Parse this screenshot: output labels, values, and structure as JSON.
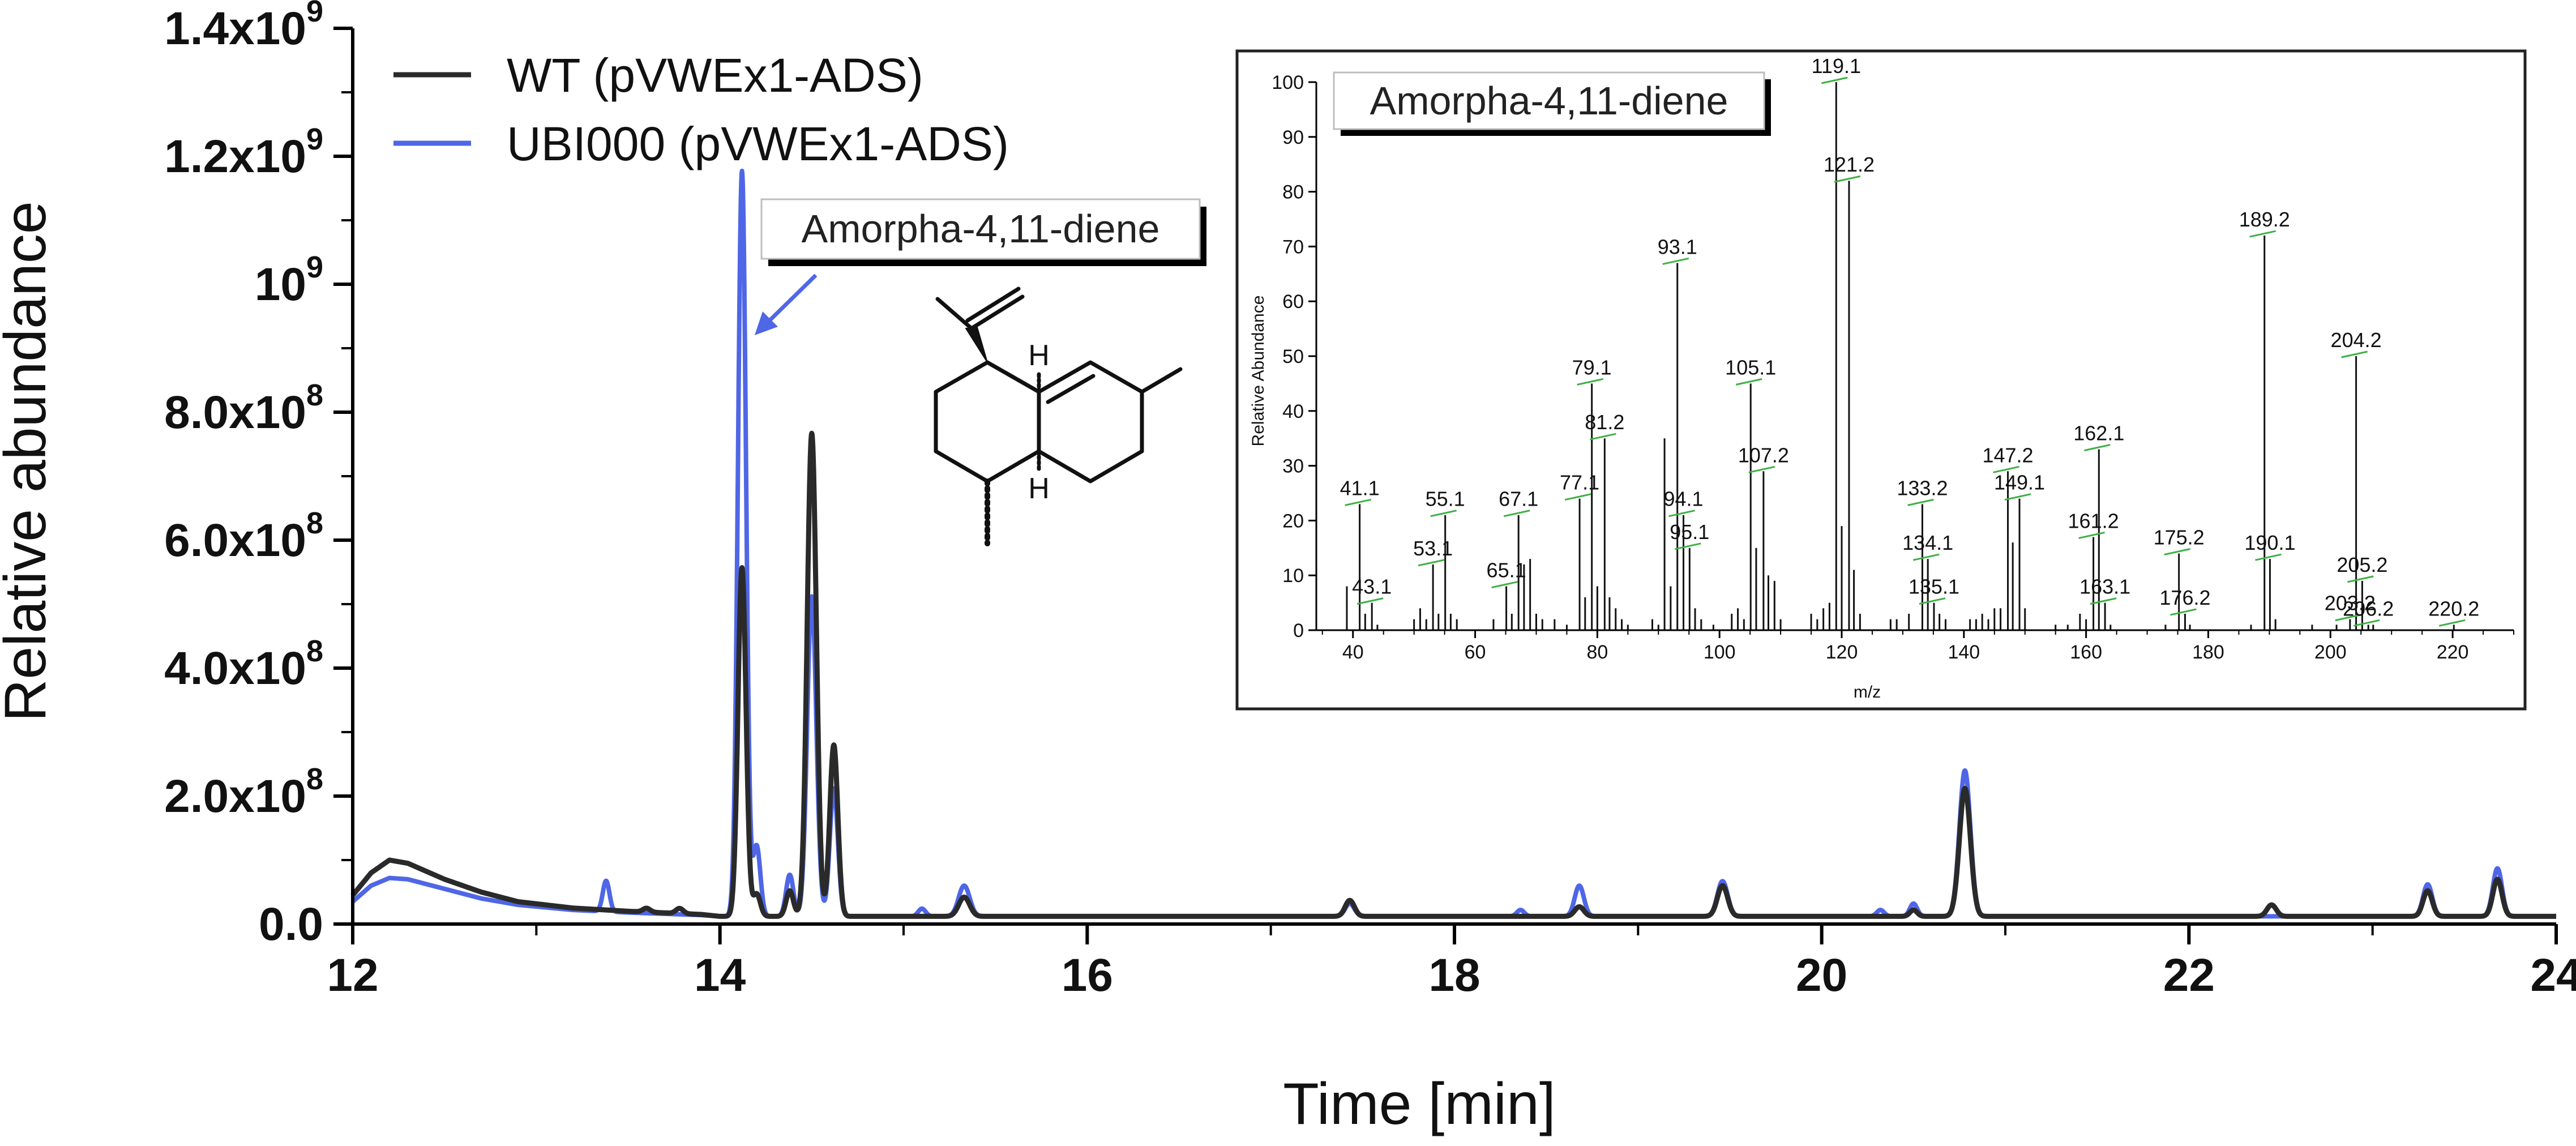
{
  "chart_data": [
    {
      "type": "line",
      "title": "",
      "xlabel": "Time [min]",
      "ylabel": "Relative abundance",
      "xlim": [
        12,
        24
      ],
      "ylim": [
        0,
        1.4
      ],
      "x_ticks": [
        12,
        14,
        16,
        18,
        20,
        22,
        24
      ],
      "y_ticks": [
        0,
        0.2,
        0.4,
        0.6,
        0.8,
        1.0,
        1.2,
        1.4
      ],
      "y_tick_labels": [
        {
          "mant": "0.0",
          "exp": ""
        },
        {
          "mant": "2.0x10",
          "exp": "8"
        },
        {
          "mant": "4.0x10",
          "exp": "8"
        },
        {
          "mant": "6.0x10",
          "exp": "8"
        },
        {
          "mant": "8.0x10",
          "exp": "8"
        },
        {
          "mant": "10",
          "exp": "9"
        },
        {
          "mant": "1.2x10",
          "exp": "9"
        },
        {
          "mant": "1.4x10",
          "exp": "9"
        }
      ],
      "grid": false,
      "legend_position": "top-left",
      "baseline": {
        "WT (pVWEx1-ADS)": 0.012,
        "UBI000 (pVWEx1-ADS)": 0.012
      },
      "series": [
        {
          "name": "WT (pVWEx1-ADS)",
          "color": "#2a2a2a",
          "start": [
            [
              12.0,
              0.045
            ],
            [
              12.1,
              0.08
            ],
            [
              12.2,
              0.1
            ],
            [
              12.3,
              0.095
            ],
            [
              12.5,
              0.07
            ],
            [
              12.7,
              0.05
            ],
            [
              12.9,
              0.035
            ],
            [
              13.2,
              0.025
            ],
            [
              13.5,
              0.02
            ],
            [
              13.9,
              0.015
            ],
            [
              14.0,
              0.012
            ]
          ],
          "peaks": [
            {
              "rt": 13.6,
              "height": 0.006,
              "width": 0.02
            },
            {
              "rt": 13.78,
              "height": 0.008,
              "width": 0.02
            },
            {
              "rt": 14.12,
              "height": 0.545,
              "width": 0.022
            },
            {
              "rt": 14.2,
              "height": 0.035,
              "width": 0.02
            },
            {
              "rt": 14.38,
              "height": 0.04,
              "width": 0.02
            },
            {
              "rt": 14.5,
              "height": 0.755,
              "width": 0.025
            },
            {
              "rt": 14.62,
              "height": 0.268,
              "width": 0.022
            },
            {
              "rt": 15.33,
              "height": 0.03,
              "width": 0.03
            },
            {
              "rt": 17.43,
              "height": 0.025,
              "width": 0.025
            },
            {
              "rt": 18.68,
              "height": 0.015,
              "width": 0.025
            },
            {
              "rt": 19.46,
              "height": 0.048,
              "width": 0.028
            },
            {
              "rt": 20.5,
              "height": 0.01,
              "width": 0.02
            },
            {
              "rt": 20.78,
              "height": 0.2,
              "width": 0.03
            },
            {
              "rt": 22.45,
              "height": 0.018,
              "width": 0.025
            },
            {
              "rt": 23.3,
              "height": 0.04,
              "width": 0.025
            },
            {
              "rt": 23.68,
              "height": 0.058,
              "width": 0.025
            }
          ]
        },
        {
          "name": "UBI000 (pVWEx1-ADS)",
          "color": "#4f66e6",
          "start": [
            [
              12.0,
              0.035
            ],
            [
              12.1,
              0.06
            ],
            [
              12.2,
              0.072
            ],
            [
              12.3,
              0.07
            ],
            [
              12.5,
              0.055
            ],
            [
              12.7,
              0.04
            ],
            [
              12.9,
              0.03
            ],
            [
              13.2,
              0.022
            ],
            [
              13.5,
              0.018
            ],
            [
              13.9,
              0.014
            ],
            [
              14.0,
              0.012
            ]
          ],
          "peaks": [
            {
              "rt": 13.38,
              "height": 0.048,
              "width": 0.018
            },
            {
              "rt": 14.12,
              "height": 1.165,
              "width": 0.022
            },
            {
              "rt": 14.2,
              "height": 0.11,
              "width": 0.02
            },
            {
              "rt": 14.38,
              "height": 0.065,
              "width": 0.02
            },
            {
              "rt": 14.5,
              "height": 0.5,
              "width": 0.025
            },
            {
              "rt": 14.62,
              "height": 0.2,
              "width": 0.022
            },
            {
              "rt": 15.1,
              "height": 0.012,
              "width": 0.02
            },
            {
              "rt": 15.33,
              "height": 0.048,
              "width": 0.03
            },
            {
              "rt": 17.43,
              "height": 0.02,
              "width": 0.025
            },
            {
              "rt": 18.36,
              "height": 0.01,
              "width": 0.02
            },
            {
              "rt": 18.68,
              "height": 0.048,
              "width": 0.025
            },
            {
              "rt": 19.46,
              "height": 0.055,
              "width": 0.028
            },
            {
              "rt": 20.32,
              "height": 0.01,
              "width": 0.02
            },
            {
              "rt": 20.5,
              "height": 0.02,
              "width": 0.02
            },
            {
              "rt": 20.78,
              "height": 0.228,
              "width": 0.03
            },
            {
              "rt": 23.3,
              "height": 0.05,
              "width": 0.025
            },
            {
              "rt": 23.68,
              "height": 0.075,
              "width": 0.025
            }
          ]
        }
      ],
      "annotation": {
        "label": "Amorpha-4,11-diene",
        "x": 14.12,
        "y": 0.93
      },
      "structure_labels": [
        "H",
        "H"
      ]
    },
    {
      "type": "bar",
      "title": "Amorpha-4,11-diene",
      "xlabel": "m/z",
      "ylabel": "Relative Abundance",
      "xlim": [
        34,
        230
      ],
      "ylim": [
        0,
        100
      ],
      "x_ticks": [
        40,
        60,
        80,
        100,
        120,
        140,
        160,
        180,
        200,
        220
      ],
      "y_ticks": [
        0,
        10,
        20,
        30,
        40,
        50,
        60,
        70,
        80,
        90,
        100
      ],
      "labeled_peaks": [
        {
          "mz": 41.1,
          "label": "41.1",
          "value": 23
        },
        {
          "mz": 43.1,
          "label": "43.1",
          "value": 5
        },
        {
          "mz": 53.1,
          "label": "53.1",
          "value": 12
        },
        {
          "mz": 55.1,
          "label": "55.1",
          "value": 21
        },
        {
          "mz": 65.1,
          "label": "65.1",
          "value": 8
        },
        {
          "mz": 67.1,
          "label": "67.1",
          "value": 21
        },
        {
          "mz": 77.1,
          "label": "77.1",
          "value": 24
        },
        {
          "mz": 79.1,
          "label": "79.1",
          "value": 45
        },
        {
          "mz": 81.2,
          "label": "81.2",
          "value": 35
        },
        {
          "mz": 93.1,
          "label": "93.1",
          "value": 67
        },
        {
          "mz": 94.1,
          "label": "94.1",
          "value": 21
        },
        {
          "mz": 95.1,
          "label": "95.1",
          "value": 15
        },
        {
          "mz": 105.1,
          "label": "105.1",
          "value": 45
        },
        {
          "mz": 107.2,
          "label": "107.2",
          "value": 29
        },
        {
          "mz": 119.1,
          "label": "119.1",
          "value": 100
        },
        {
          "mz": 121.2,
          "label": "121.2",
          "value": 82
        },
        {
          "mz": 133.2,
          "label": "133.2",
          "value": 23
        },
        {
          "mz": 134.1,
          "label": "134.1",
          "value": 13
        },
        {
          "mz": 135.1,
          "label": "135.1",
          "value": 5
        },
        {
          "mz": 147.2,
          "label": "147.2",
          "value": 29
        },
        {
          "mz": 149.1,
          "label": "149.1",
          "value": 24
        },
        {
          "mz": 161.2,
          "label": "161.2",
          "value": 17
        },
        {
          "mz": 162.1,
          "label": "162.1",
          "value": 33
        },
        {
          "mz": 163.1,
          "label": "163.1",
          "value": 5
        },
        {
          "mz": 175.2,
          "label": "175.2",
          "value": 14
        },
        {
          "mz": 176.2,
          "label": "176.2",
          "value": 3
        },
        {
          "mz": 189.2,
          "label": "189.2",
          "value": 72
        },
        {
          "mz": 190.1,
          "label": "190.1",
          "value": 13
        },
        {
          "mz": 203.2,
          "label": "203.2",
          "value": 2
        },
        {
          "mz": 204.2,
          "label": "204.2",
          "value": 50
        },
        {
          "mz": 205.2,
          "label": "205.2",
          "value": 9
        },
        {
          "mz": 206.2,
          "label": "206.2",
          "value": 1
        },
        {
          "mz": 220.2,
          "label": "220.2",
          "value": 1
        }
      ],
      "unlabeled_peaks": [
        [
          39,
          8
        ],
        [
          42,
          3
        ],
        [
          44,
          1
        ],
        [
          50,
          2
        ],
        [
          51,
          4
        ],
        [
          52,
          2
        ],
        [
          54,
          3
        ],
        [
          56,
          3
        ],
        [
          57,
          2
        ],
        [
          63,
          2
        ],
        [
          66,
          3
        ],
        [
          68,
          12
        ],
        [
          69,
          13
        ],
        [
          70,
          3
        ],
        [
          71,
          2
        ],
        [
          73,
          2
        ],
        [
          75,
          1
        ],
        [
          78,
          6
        ],
        [
          80,
          8
        ],
        [
          82,
          6
        ],
        [
          83,
          4
        ],
        [
          84,
          2
        ],
        [
          85,
          1
        ],
        [
          89,
          2
        ],
        [
          90,
          1
        ],
        [
          91,
          35
        ],
        [
          92,
          8
        ],
        [
          96,
          4
        ],
        [
          97,
          2
        ],
        [
          99,
          1
        ],
        [
          102,
          3
        ],
        [
          103,
          4
        ],
        [
          104,
          2
        ],
        [
          106,
          15
        ],
        [
          108,
          10
        ],
        [
          109,
          9
        ],
        [
          110,
          2
        ],
        [
          115,
          3
        ],
        [
          116,
          2
        ],
        [
          117,
          4
        ],
        [
          118,
          5
        ],
        [
          120,
          19
        ],
        [
          122,
          11
        ],
        [
          123,
          3
        ],
        [
          128,
          2
        ],
        [
          129,
          2
        ],
        [
          131,
          3
        ],
        [
          136,
          3
        ],
        [
          137,
          2
        ],
        [
          141,
          2
        ],
        [
          142,
          2
        ],
        [
          143,
          3
        ],
        [
          144,
          2
        ],
        [
          145,
          4
        ],
        [
          146,
          4
        ],
        [
          148,
          16
        ],
        [
          150,
          4
        ],
        [
          155,
          1
        ],
        [
          157,
          1
        ],
        [
          159,
          3
        ],
        [
          160,
          2
        ],
        [
          164,
          1
        ],
        [
          173,
          1
        ],
        [
          177,
          1
        ],
        [
          187,
          1
        ],
        [
          191,
          2
        ],
        [
          197,
          1
        ],
        [
          201,
          1
        ],
        [
          207,
          1
        ]
      ]
    }
  ]
}
